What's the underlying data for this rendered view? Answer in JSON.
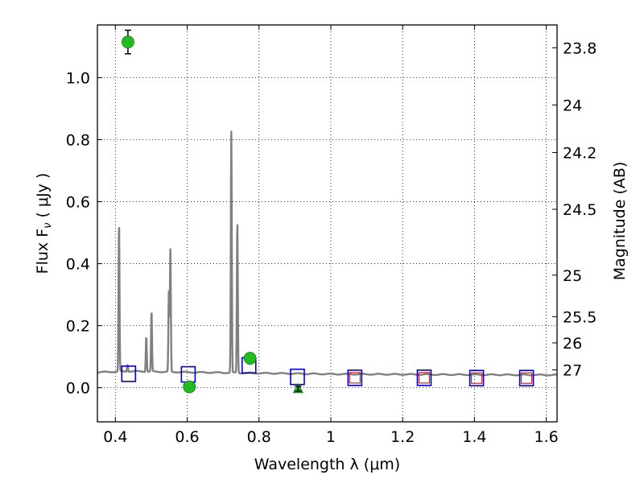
{
  "chart_data": {
    "type": "scatter",
    "xlabel": "Wavelength  λ (μm)",
    "ylabel": "Flux  F",
    "ylabel_sub": "ν",
    "ylabel_unit": "  ( μJy )",
    "ylabel_right": "Magnitude (AB)",
    "xlim": [
      0.35,
      1.63
    ],
    "ylim": [
      -0.11,
      1.17
    ],
    "grid": true,
    "x_ticks": [
      0.4,
      0.6,
      0.8,
      1.0,
      1.2,
      1.4,
      1.6
    ],
    "x_tick_labels": [
      "0.4",
      "0.6",
      "0.8",
      "1",
      "1.2",
      "1.4",
      "1.6"
    ],
    "y_ticks": [
      0.0,
      0.2,
      0.4,
      0.6,
      0.8,
      1.0
    ],
    "y_tick_labels": [
      "0.0",
      "0.2",
      "0.4",
      "0.6",
      "0.8",
      "1.0"
    ],
    "right_ticks": [
      {
        "label": "23.8",
        "mag": 23.8
      },
      {
        "label": "24",
        "mag": 24.0
      },
      {
        "label": "24.2",
        "mag": 24.2
      },
      {
        "label": "24.5",
        "mag": 24.5
      },
      {
        "label": "25",
        "mag": 25.0
      },
      {
        "label": "25.5",
        "mag": 25.5
      },
      {
        "label": "26",
        "mag": 26.0
      },
      {
        "label": "27",
        "mag": 27.0
      }
    ],
    "model_spectrum": {
      "color": "#808080",
      "continuum": [
        [
          0.35,
          0.05
        ],
        [
          0.45,
          0.053
        ],
        [
          0.6,
          0.05
        ],
        [
          0.8,
          0.047
        ],
        [
          1.0,
          0.044
        ],
        [
          1.2,
          0.043
        ],
        [
          1.4,
          0.042
        ],
        [
          1.63,
          0.041
        ]
      ],
      "lines": [
        {
          "x": 0.4102,
          "peak": 0.535
        },
        {
          "x": 0.434,
          "peak": 0.075
        },
        {
          "x": 0.4861,
          "peak": 0.167
        },
        {
          "x": 0.5007,
          "peak": 0.245
        },
        {
          "x": 0.549,
          "peak": 0.31
        },
        {
          "x": 0.5532,
          "peak": 0.445
        },
        {
          "x": 0.7229,
          "peak": 0.825
        },
        {
          "x": 0.7397,
          "peak": 0.535
        }
      ]
    },
    "model_photometry": {
      "color": "#0000cc",
      "marker": "open-square",
      "points": [
        {
          "x": 0.437,
          "y": 0.045
        },
        {
          "x": 0.603,
          "y": 0.043
        },
        {
          "x": 0.772,
          "y": 0.072
        },
        {
          "x": 0.907,
          "y": 0.035
        },
        {
          "x": 1.067,
          "y": 0.032
        },
        {
          "x": 1.26,
          "y": 0.032
        },
        {
          "x": 1.406,
          "y": 0.031
        },
        {
          "x": 1.545,
          "y": 0.031
        }
      ]
    },
    "model_inner": {
      "color": "#cc2222",
      "marker": "open-square",
      "points": [
        {
          "x": 1.067,
          "y": 0.032
        },
        {
          "x": 1.26,
          "y": 0.032
        },
        {
          "x": 1.406,
          "y": 0.031
        },
        {
          "x": 1.545,
          "y": 0.031
        }
      ]
    },
    "observed": {
      "color": "#22bb22",
      "marker": "filled-circle",
      "points": [
        {
          "x": 0.435,
          "y": 1.115,
          "err": 0.038
        },
        {
          "x": 0.606,
          "y": 0.003,
          "err": 0.01
        },
        {
          "x": 0.775,
          "y": 0.095,
          "err": 0.012
        }
      ]
    },
    "upper_limits": {
      "color": "#22bb22",
      "marker": "triangle",
      "points": [
        {
          "x": 0.909,
          "y": -0.003,
          "err": 0.008
        }
      ]
    }
  }
}
